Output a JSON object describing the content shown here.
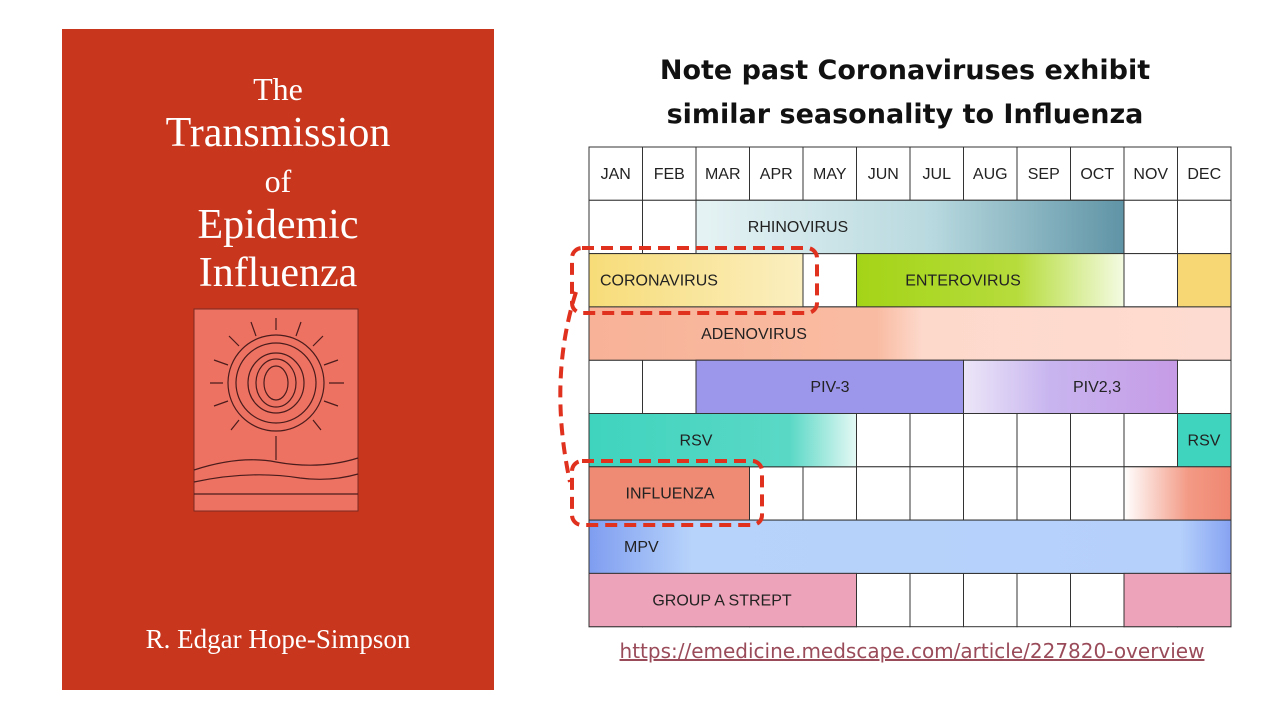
{
  "book": {
    "title": [
      "The",
      "Transmission",
      "of",
      "Epidemic",
      "Influenza"
    ],
    "author": "R. Edgar Hope-Simpson"
  },
  "heading": [
    "Note past Coronaviruses exhibit",
    "similar seasonality to Influenza"
  ],
  "table": {
    "months": [
      "JAN",
      "FEB",
      "MAR",
      "APR",
      "MAY",
      "JUN",
      "JUL",
      "AUG",
      "SEP",
      "OCT",
      "NOV",
      "DEC"
    ],
    "rows": [
      [
        "RHINOVIRUS"
      ],
      [
        "CORONAVIRUS",
        "ENTEROVIRUS"
      ],
      [
        "ADENOVIRUS"
      ],
      [
        "PIV-3",
        "PIV2,3"
      ],
      [
        "RSV",
        "RSV"
      ],
      [
        "INFLUENZA"
      ],
      [
        "MPV"
      ],
      [
        "GROUP A STREPT"
      ]
    ]
  },
  "link": "https://emedicine.medscape.com/article/227820-overview"
}
